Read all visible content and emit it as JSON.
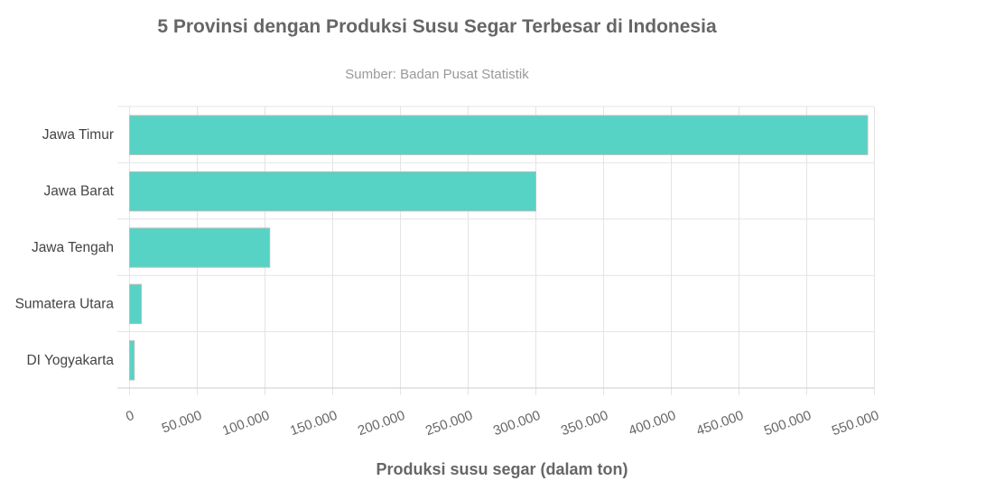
{
  "chart_data": {
    "type": "bar",
    "orientation": "horizontal",
    "title": "5 Provinsi dengan Produksi Susu Segar Terbesar di Indonesia",
    "subtitle": "Sumber: Badan Pusat Statistik",
    "xlabel": "Produksi susu segar (dalam ton)",
    "ylabel": "",
    "categories": [
      "Jawa Timur",
      "Jawa Barat",
      "Jawa Tengah",
      "Sumatera Utara",
      "DI Yogyakarta"
    ],
    "values": [
      545000,
      300000,
      103500,
      8700,
      3500
    ],
    "xlim": [
      0,
      550000
    ],
    "xticks": [
      0,
      50000,
      100000,
      150000,
      200000,
      250000,
      300000,
      350000,
      400000,
      450000,
      500000,
      550000
    ],
    "xtick_labels": [
      "0",
      "50.000",
      "100.000",
      "150.000",
      "200.000",
      "250.000",
      "300.000",
      "350.000",
      "400.000",
      "450.000",
      "500.000",
      "550.000"
    ],
    "grid": true,
    "legend": "none",
    "colors": {
      "bar": "#56d3c5",
      "bar_border": "#bbbbbb",
      "grid": "#e4e4e4",
      "text": "#666666"
    }
  }
}
